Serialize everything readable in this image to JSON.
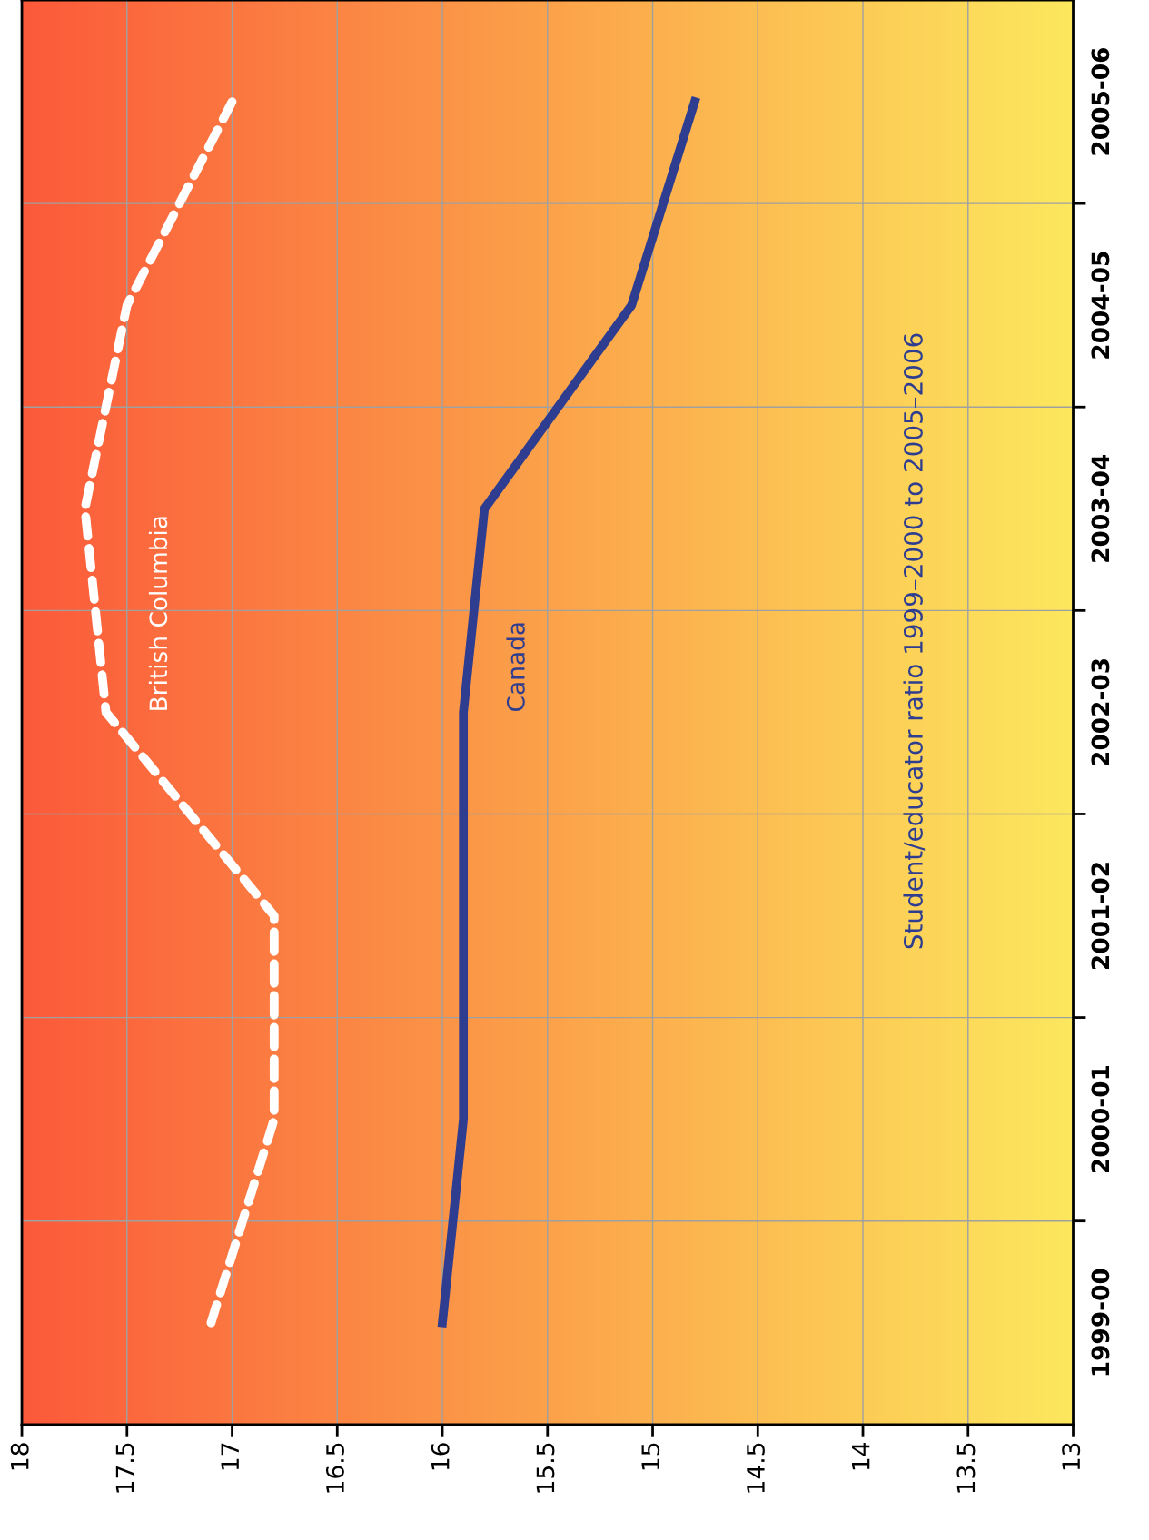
{
  "chart_data": {
    "type": "line",
    "orientation": "horizontal",
    "title": "Student/educator ratio 1999–2000 to 2005–2006",
    "categories": [
      "2005-06",
      "2004-05",
      "2003-04",
      "2002-03",
      "2001-02",
      "2000-01",
      "1999-00"
    ],
    "series": [
      {
        "name": "British Columbia",
        "color": "#ffffff",
        "line_style": "dashed",
        "values": [
          17.0,
          17.5,
          17.7,
          17.6,
          16.8,
          16.8,
          17.1
        ]
      },
      {
        "name": "Canada",
        "color": "#2e3d8f",
        "line_style": "solid",
        "values": [
          14.8,
          15.1,
          15.8,
          15.9,
          15.9,
          15.9,
          16.0
        ]
      }
    ],
    "xlim": [
      18,
      13
    ],
    "xticks": [
      18,
      17.5,
      17,
      16.5,
      16,
      15.5,
      15,
      14.5,
      14,
      13.5,
      13
    ],
    "grid": true,
    "marker": "none"
  }
}
